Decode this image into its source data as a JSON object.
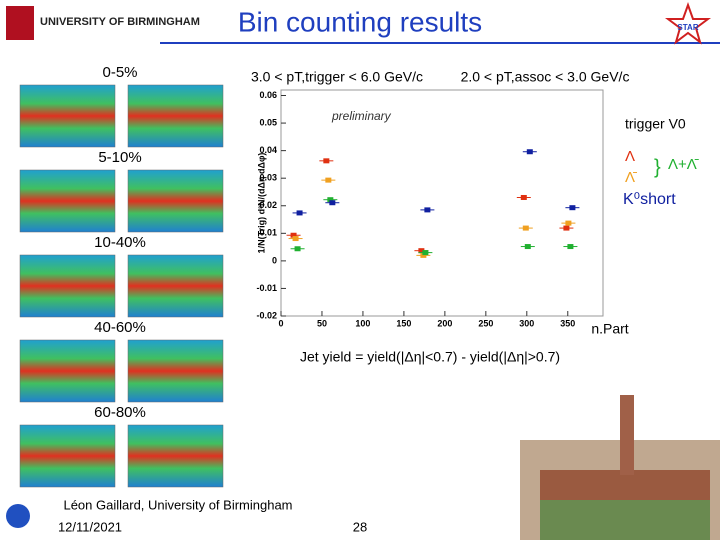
{
  "header": {
    "title": "Bin counting results",
    "university": "UNIVERSITY OF BIRMINGHAM",
    "logo": "STAR"
  },
  "centralities": [
    "0-5%",
    "5-10%",
    "10-40%",
    "40-60%",
    "60-80%"
  ],
  "cuts": {
    "trigger": "3.0 < pT,trigger < 6.0 GeV/c",
    "assoc": "2.0 < pT,assoc < 3.0 GeV/c"
  },
  "preliminary": "preliminary",
  "trigger_label": "trigger V0",
  "formula": "Jet yield = yield(|Δη|<0.7) - yield(|Δη|>0.7)",
  "footer": {
    "author": "Léon Gaillard, University of Birmingham",
    "date": "12/11/2021",
    "page": "28"
  },
  "chart_data": {
    "type": "scatter",
    "x_label": "n.Part",
    "y_label": "1/N(Trig) d²N/(dΔη dΔφ)",
    "x": [
      19,
      59,
      175,
      300,
      352
    ],
    "series": [
      {
        "name": "Λ",
        "color": "#e03010",
        "values": [
          0.0093,
          0.0363,
          0.0037,
          0.023,
          0.0119
        ]
      },
      {
        "name": "Λ̄",
        "color": "#f0a020",
        "values": [
          0.0081,
          0.0293,
          0.002,
          0.0119,
          0.0137
        ]
      },
      {
        "name": "Λ+Λ̄",
        "color": "#20b030",
        "values": [
          0.0044,
          0.0222,
          0.003,
          0.0052,
          0.0052
        ]
      },
      {
        "name": "K⁰short",
        "color": "#1020a0",
        "values": [
          0.0174,
          0.0211,
          0.0185,
          0.0396,
          0.0193
        ]
      }
    ],
    "xlim": [
      0,
      393
    ],
    "xticks": [
      0,
      50,
      100,
      150,
      200,
      250,
      300,
      350
    ],
    "ylim": [
      -0.02,
      0.062
    ],
    "yticks": [
      -0.02,
      -0.01,
      0,
      0.01,
      0.02,
      0.03,
      0.04,
      0.05,
      0.06
    ]
  }
}
